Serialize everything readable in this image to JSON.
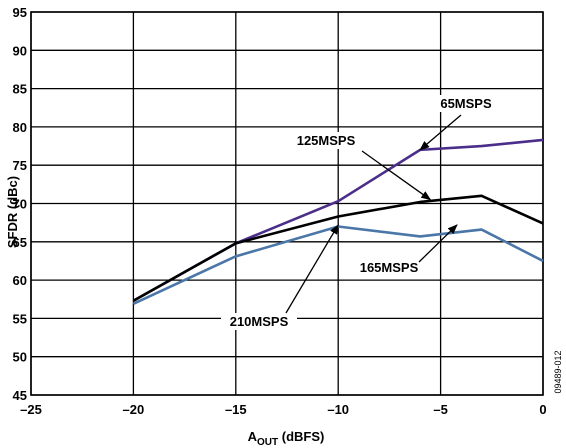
{
  "chart_data": {
    "type": "line",
    "xlabel": "A",
    "xlabel_sub": "OUT",
    "xlabel_unit": " (dBFS)",
    "ylabel": "SFDR (dBc)",
    "xlim": [
      -25,
      0
    ],
    "ylim": [
      45,
      95
    ],
    "xticks": [
      -25,
      -20,
      -15,
      -10,
      -5,
      0
    ],
    "xtick_labels": [
      "–25",
      "–20",
      "–15",
      "–10",
      "–5",
      "0"
    ],
    "yticks": [
      45,
      50,
      55,
      60,
      65,
      70,
      75,
      80,
      85,
      90,
      95
    ],
    "ytick_labels": [
      "45",
      "50",
      "55",
      "60",
      "65",
      "70",
      "75",
      "80",
      "85",
      "90",
      "95"
    ],
    "grid": true,
    "legend": "none",
    "series": [
      {
        "name": "65MSPS",
        "color": "#4b2d8a",
        "x": [
          -20,
          -15,
          -10,
          -6,
          -3,
          0
        ],
        "y": [
          57.3,
          64.8,
          70.3,
          77.0,
          77.5,
          78.3
        ]
      },
      {
        "name": "125MSPS",
        "color": "#000000",
        "x": [
          -20,
          -15,
          -10,
          -6,
          -3,
          0
        ],
        "y": [
          57.3,
          64.8,
          68.3,
          70.2,
          71.0,
          67.4
        ]
      },
      {
        "name": "165MSPS",
        "color": "#4a76a8",
        "x": [
          -20,
          -15,
          -10,
          -6,
          -3,
          0
        ],
        "y": [
          56.9,
          63.1,
          67.0,
          65.7,
          66.6,
          62.5
        ]
      }
    ],
    "annotations": [
      {
        "text": "65MSPS",
        "arrow_to": [
          -6,
          77.0
        ]
      },
      {
        "text": "125MSPS",
        "arrow_to": [
          -5.5,
          70.5
        ]
      },
      {
        "text": "165MSPS",
        "arrow_to": [
          -4.2,
          67.2
        ]
      },
      {
        "text": "210MSPS",
        "arrow_to": [
          -10,
          67.2
        ]
      }
    ],
    "figure_id": "09489-012"
  }
}
